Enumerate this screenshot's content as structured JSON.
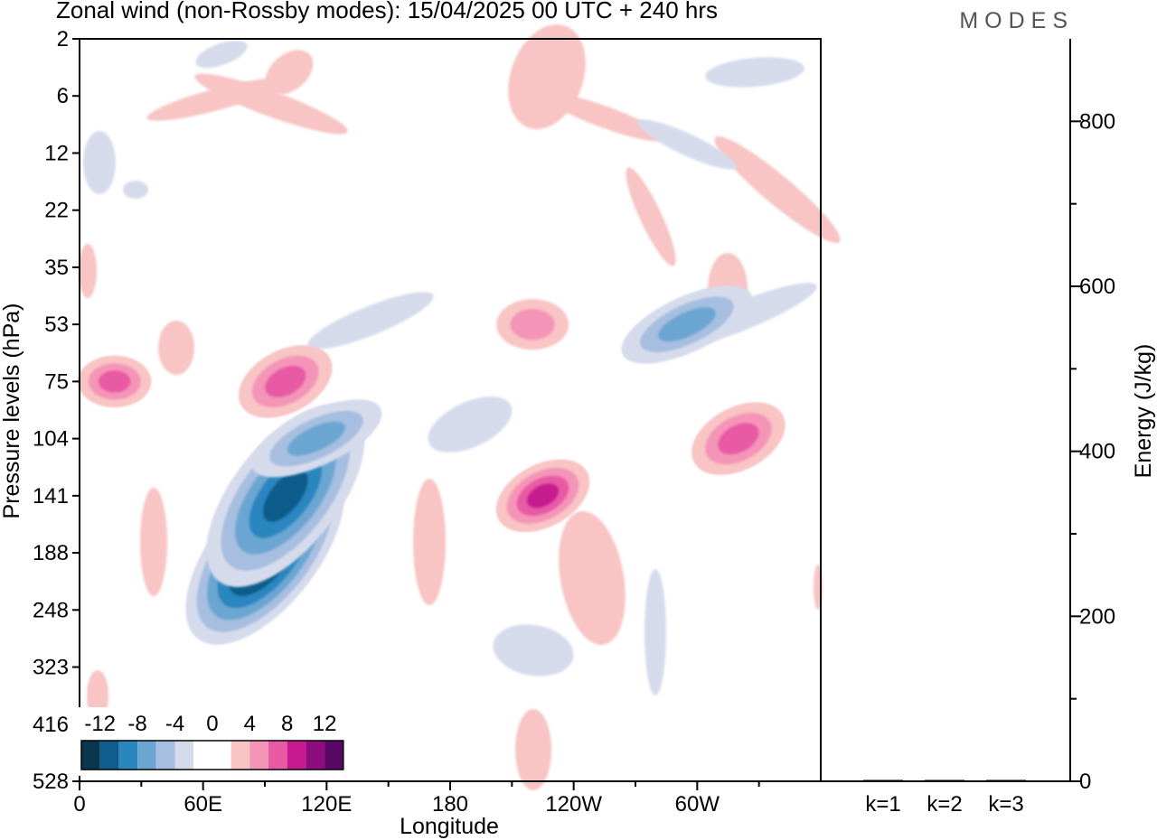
{
  "header": {
    "title": "Zonal wind (non-Rossby modes):  15/04/2025  00 UTC  + 240 hrs",
    "brand": "MODES"
  },
  "chart_data": [
    {
      "type": "heatmap",
      "title": "Zonal wind (non-Rossby modes):  15/04/2025  00 UTC  + 240 hrs",
      "xlabel": "Longitude",
      "ylabel": "Pressure levels (hPa)",
      "x_ticks": [
        "0",
        "60E",
        "120E",
        "180",
        "120W",
        "60W"
      ],
      "x_tick_values": [
        0,
        60,
        120,
        180,
        240,
        300
      ],
      "xlim": [
        0,
        360
      ],
      "y_ticks": [
        "2",
        "6",
        "12",
        "22",
        "35",
        "53",
        "75",
        "104",
        "141",
        "188",
        "248",
        "323",
        "416",
        "528"
      ],
      "y_scale": "model levels (categorical, top to bottom)",
      "grid": false,
      "colorbar": {
        "labels": [
          "-12",
          "-8",
          "-4",
          "0",
          "4",
          "8",
          "12"
        ],
        "colors": [
          "#0b3650",
          "#0e5d8c",
          "#2a86bf",
          "#6aa6d1",
          "#a6bedf",
          "#d6dbec",
          "#ffffff",
          "#ffffff",
          "#f8c4c4",
          "#f494b7",
          "#e85aa4",
          "#c71a90",
          "#8e0c7e",
          "#5a0765"
        ],
        "placement": "bottom-left"
      },
      "features": [
        {
          "lon": 90,
          "level": "188",
          "value": -14
        },
        {
          "lon": 100,
          "level": "141",
          "value": -10
        },
        {
          "lon": 115,
          "level": "104",
          "value": -6
        },
        {
          "lon": 100,
          "level": "75",
          "value": 7
        },
        {
          "lon": 225,
          "level": "141",
          "value": 8
        },
        {
          "lon": 320,
          "level": "104",
          "value": 7
        },
        {
          "lon": 17,
          "level": "75",
          "value": 6
        },
        {
          "lon": 295,
          "level": "53",
          "value": -6
        },
        {
          "lon": 220,
          "level": "53",
          "value": 5
        }
      ]
    },
    {
      "type": "bar",
      "categories": [
        "k=1",
        "k=2",
        "k=3"
      ],
      "values": [
        1.0,
        0.6,
        0.4
      ],
      "ylabel": "Energy (J/kg)",
      "y_ticks": [
        "0",
        "200",
        "400",
        "600",
        "800"
      ],
      "ylim": [
        0,
        900
      ],
      "axis_side": "right",
      "grid": false
    }
  ]
}
